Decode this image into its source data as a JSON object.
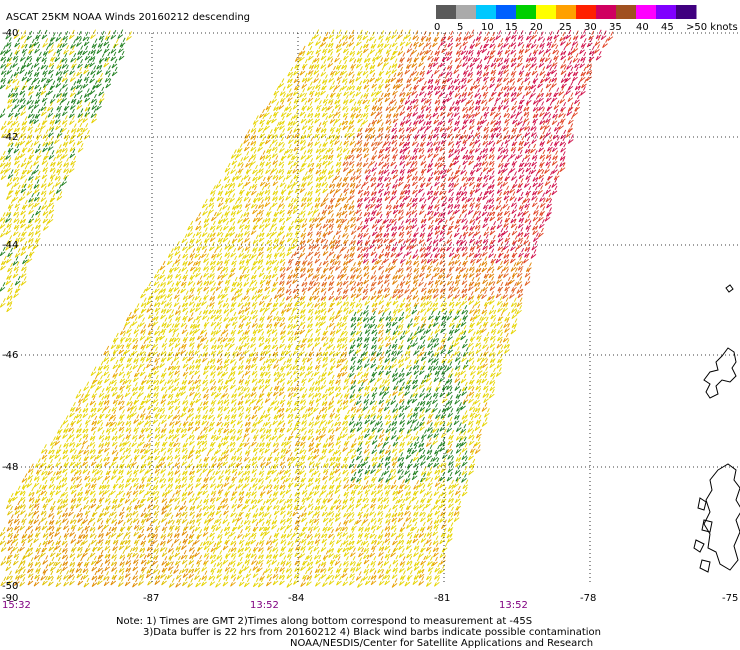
{
  "title": "ASCAT 25KM NOAA Winds 20160212 descending",
  "colorbar": {
    "labels": [
      "0",
      "5",
      "10",
      "15",
      "20",
      "25",
      "30",
      "35",
      "40",
      "45",
      ">50 knots"
    ],
    "colors": [
      "#5a5a5a",
      "#aaaaaa",
      "#00c8ff",
      "#0060ff",
      "#00d000",
      "#ffff00",
      "#ffa000",
      "#ff2000",
      "#d00060",
      "#a05020",
      "#ff00ff",
      "#8000ff",
      "#400080"
    ]
  },
  "lat_labels": [
    "-40",
    "-42",
    "-44",
    "-46",
    "-48",
    "-50"
  ],
  "lon_labels": [
    "-90",
    "-87",
    "-84",
    "-81",
    "-78",
    "-75"
  ],
  "time_labels": [
    "15:32",
    "13:52",
    "13:52"
  ],
  "notes": [
    "Note: 1) Times are GMT 2)Times along bottom correspond to measurement at -45S",
    "3)Data buffer is 22 hrs from 20160212 4) Black wind barbs indicate possible contamination",
    "NOAA/NESDIS/Center for Satellite Applications and Research"
  ]
}
